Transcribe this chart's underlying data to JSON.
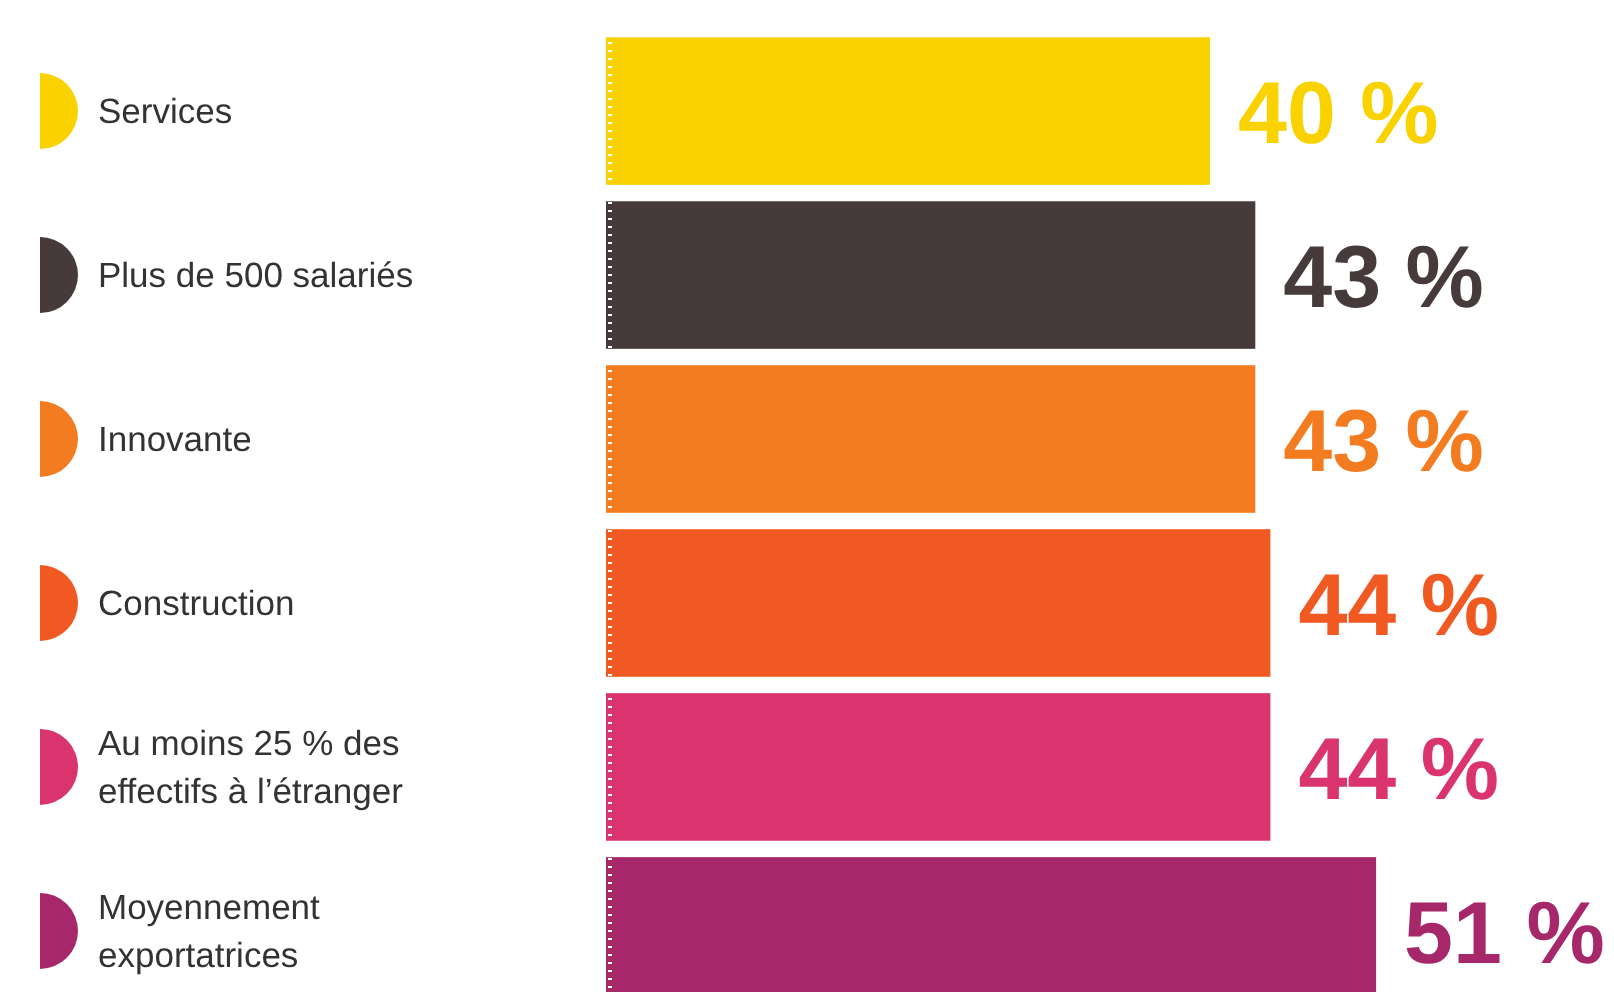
{
  "chart_data": {
    "type": "bar",
    "orientation": "horizontal",
    "categories": [
      "Services",
      "Plus de 500 salariés",
      "Innovante",
      "Construction",
      "Au moins 25 % des effectifs à l’étranger",
      "Moyennement exportatrices"
    ],
    "values": [
      40,
      43,
      43,
      44,
      44,
      51
    ],
    "colors": [
      "#fad200",
      "#463a3a",
      "#f47c20",
      "#f05a22",
      "#da346f",
      "#a6286a"
    ],
    "value_labels": [
      "40 %",
      "43 %",
      "43 %",
      "44 %",
      "44 %",
      "51 %"
    ],
    "tick_labels": "y"
  }
}
